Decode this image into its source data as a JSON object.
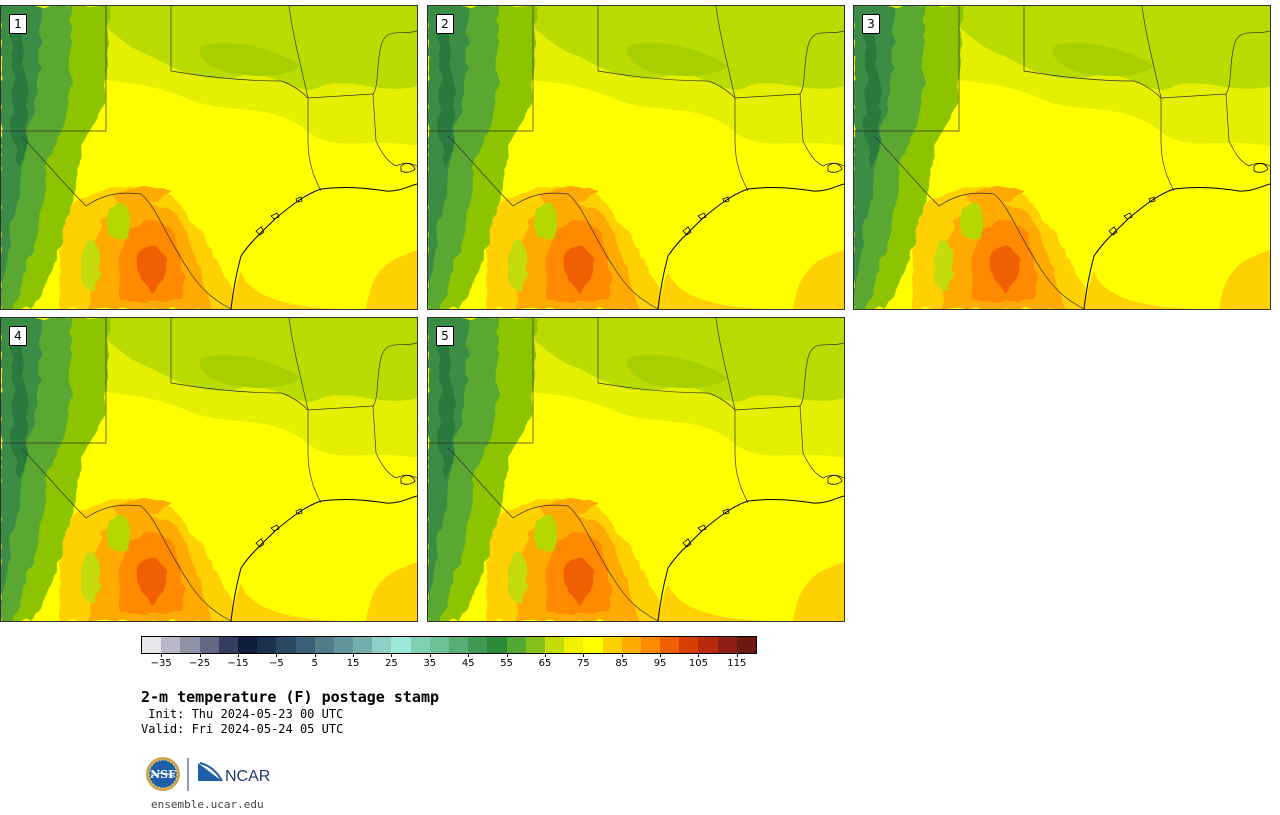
{
  "panels": [
    {
      "label": "1"
    },
    {
      "label": "2"
    },
    {
      "label": "3"
    },
    {
      "label": "4"
    },
    {
      "label": "5"
    }
  ],
  "colorbar": {
    "tick_labels": [
      "−35",
      "−25",
      "−15",
      "−5",
      "5",
      "15",
      "25",
      "35",
      "45",
      "55",
      "65",
      "75",
      "85",
      "95",
      "105",
      "115"
    ],
    "tick_values": [
      -35,
      -25,
      -15,
      -5,
      5,
      15,
      25,
      35,
      45,
      55,
      65,
      75,
      85,
      95,
      105,
      115
    ],
    "range": [
      -40,
      120
    ],
    "interval": 5,
    "colors": [
      "#e5e5ea",
      "#b8b8c8",
      "#8f92a6",
      "#626884",
      "#323d5f",
      "#0f1e3d",
      "#1b304e",
      "#2a4762",
      "#3b6075",
      "#507c88",
      "#62949a",
      "#73adae",
      "#8ed0c6",
      "#9ae8da",
      "#7fd0b0",
      "#6cc095",
      "#58ad76",
      "#3f9a55",
      "#2c8b38",
      "#52a830",
      "#86c01a",
      "#c4dc0a",
      "#eef200",
      "#ffff00",
      "#ffd100",
      "#ffaa00",
      "#ff8a00",
      "#f06000",
      "#d83e00",
      "#b82a0a",
      "#8f1f14",
      "#6a1a10"
    ]
  },
  "map_colors": {
    "ocean_warm": "#ffd100",
    "land_warm": "#ffff00",
    "land_mild": "#e5f000",
    "land_cool": "#b4d800",
    "mountain_1": "#8cc400",
    "mountain_2": "#5aa830",
    "mountain_3": "#3c8c44",
    "hot_1": "#ffaa00",
    "hot_2": "#ff8a00",
    "hot_3": "#f06000"
  },
  "title": "2-m temperature (F) postage stamp",
  "init_line": " Init: Thu 2024-05-23 00 UTC",
  "valid_line": "Valid: Fri 2024-05-24 05 UTC",
  "logos": {
    "nsf": "NSF",
    "ncar": "NCAR"
  },
  "website": "ensemble.ucar.edu"
}
